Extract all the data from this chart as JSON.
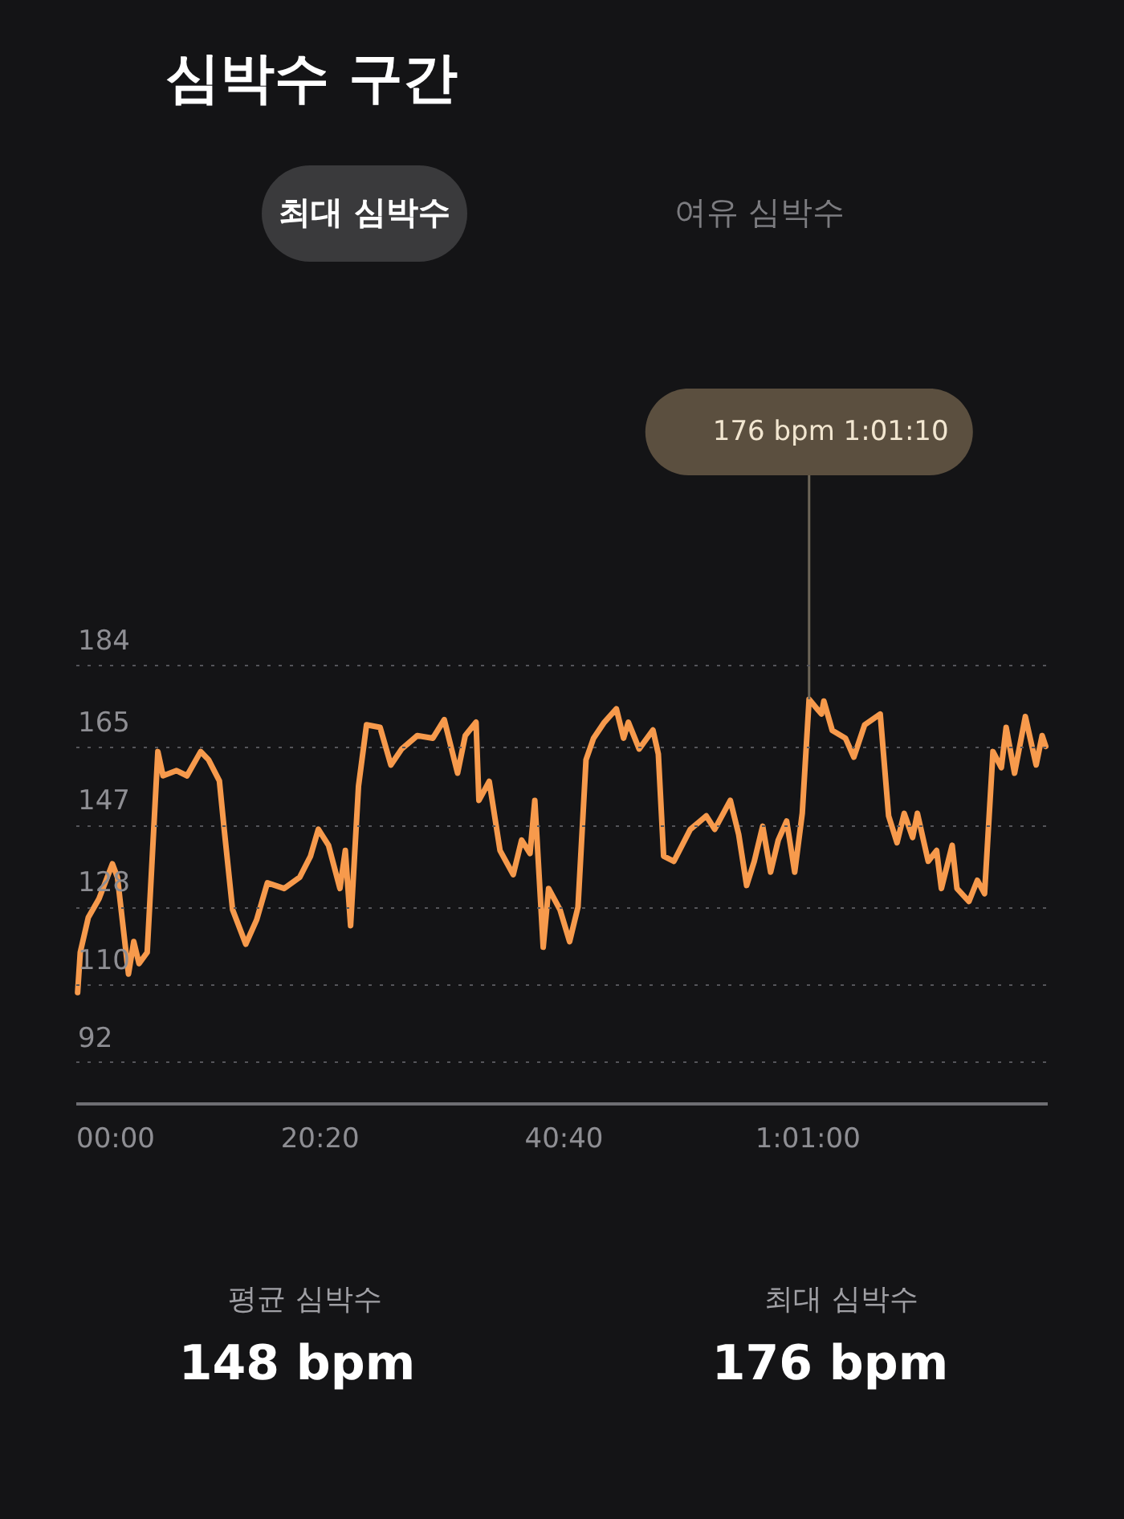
{
  "chart_data": {
    "type": "line",
    "title": "심박수 구간",
    "annotations": [
      "최대 심박수",
      "여유 심박수",
      {
        "text": "176 bpm   1:01:10",
        "x": 61.17,
        "y": 176
      },
      "평균 심박수",
      "148 bpm",
      "최대 심박수",
      "176 bpm"
    ],
    "x": [
      0.18,
      0.4,
      1.07,
      1.96,
      3.08,
      3.5,
      4.42,
      4.86,
      5.3,
      5.98,
      6.87,
      7.3,
      8.43,
      9.3,
      10.44,
      11.1,
      12.0,
      12.4,
      13.1,
      14.2,
      15.1,
      16.0,
      17.4,
      18.7,
      19.6,
      20.25,
      21.1,
      22.05,
      22.5,
      22.94,
      23.6,
      24.27,
      25.4,
      26.3,
      27.2,
      28.5,
      29.8,
      30.75,
      31.86,
      32.5,
      33.4,
      33.64,
      34.5,
      35.4,
      36.5,
      37.2,
      37.9,
      38.3,
      39.0,
      39.45,
      40.4,
      41.2,
      41.9,
      42.57,
      43.2,
      44.1,
      45.1,
      45.7,
      46.1,
      47.0,
      48.15,
      48.6,
      49.04,
      49.9,
      51.27,
      52.6,
      53.3,
      54.6,
      55.3,
      55.96,
      56.6,
      57.3,
      57.96,
      58.6,
      59.3,
      59.97,
      60.6,
      61.17,
      62.2,
      62.4,
      63.1,
      64.2,
      64.9,
      65.8,
      67.1,
      67.8,
      68.5,
      69.1,
      69.8,
      70.2,
      71.1,
      71.8,
      72.2,
      73.1,
      73.5,
      74.5,
      75.2,
      75.8,
      76.5,
      77.2,
      77.6,
      78.3,
      79.2,
      80.1,
      80.6,
      80.9
    ],
    "series": [
      {
        "color": "#f79a4c",
        "values": [
          108.1,
          117.4,
          125.5,
          129.8,
          137.9,
          134.8,
          112.4,
          119.9,
          114.8,
          117.4,
          163.9,
          158.3,
          159.5,
          158.3,
          163.9,
          162,
          157.1,
          145.9,
          127.3,
          119.3,
          124.9,
          133.5,
          132.2,
          134.8,
          139.7,
          145.9,
          142.2,
          132.2,
          141,
          123.6,
          155.9,
          170.1,
          169.5,
          160.8,
          164.5,
          167.6,
          167,
          171.3,
          158.9,
          167.6,
          170.7,
          152.6,
          157,
          141,
          135.4,
          143.4,
          140.3,
          152.6,
          118.6,
          132.2,
          127.3,
          119.9,
          127.9,
          162,
          167,
          170.7,
          173.8,
          167,
          170.7,
          164.5,
          168.9,
          163.3,
          139.7,
          138.5,
          145.9,
          149,
          145.9,
          152.6,
          144.7,
          132.9,
          138.5,
          146.6,
          136,
          143.4,
          147.8,
          136,
          149.6,
          176,
          172.6,
          175.6,
          168.8,
          167,
          162.6,
          170.1,
          172.6,
          149,
          142.8,
          149.6,
          144,
          149.6,
          138.5,
          141,
          132.2,
          142.2,
          132.2,
          129.2,
          134.1,
          131,
          163.9,
          160.2,
          169.5,
          158.9,
          172,
          160.8,
          167.6,
          165.1
        ]
      }
    ],
    "xlim": [
      0,
      81
    ],
    "ylim": [
      82.5,
      184
    ],
    "xticks": [
      {
        "value": 0,
        "label": "00:00"
      },
      {
        "value": 20.333,
        "label": "20:20"
      },
      {
        "value": 40.667,
        "label": "40:40"
      },
      {
        "value": 61,
        "label": "1:01:00"
      }
    ],
    "yticks": [
      92,
      110,
      128,
      147,
      165,
      184
    ],
    "grid": "y"
  }
}
